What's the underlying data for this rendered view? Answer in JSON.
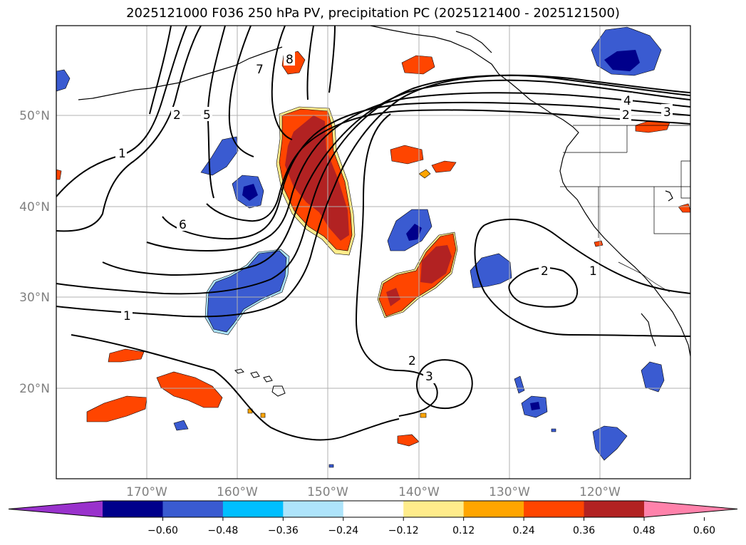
{
  "title": "2025121000 F036 250 hPa PV, precipitation PC (2025121400 - 2025121500)",
  "lat_labels": [
    "50°N",
    "40°N",
    "30°N",
    "20°N"
  ],
  "lon_labels": [
    "170°W",
    "160°W",
    "150°W",
    "140°W",
    "130°W",
    "120°W"
  ],
  "colorbar": {
    "colors": [
      "#9932cc",
      "#00008b",
      "#3a5bd1",
      "#00bfff",
      "#aee4fb",
      "#ffffff",
      "#ffec8b",
      "#ffa500",
      "#ff4500",
      "#b22222",
      "#ff82ab"
    ],
    "tick_labels": [
      "−0.60",
      "−0.48",
      "−0.36",
      "−0.24",
      "−0.12",
      "0.12",
      "0.24",
      "0.36",
      "0.48",
      "0.60"
    ]
  },
  "contour_labels": [
    "1",
    "2",
    "5",
    "7",
    "8",
    "6",
    "1",
    "2",
    "3",
    "4",
    "2",
    "3",
    "2",
    "1"
  ]
}
